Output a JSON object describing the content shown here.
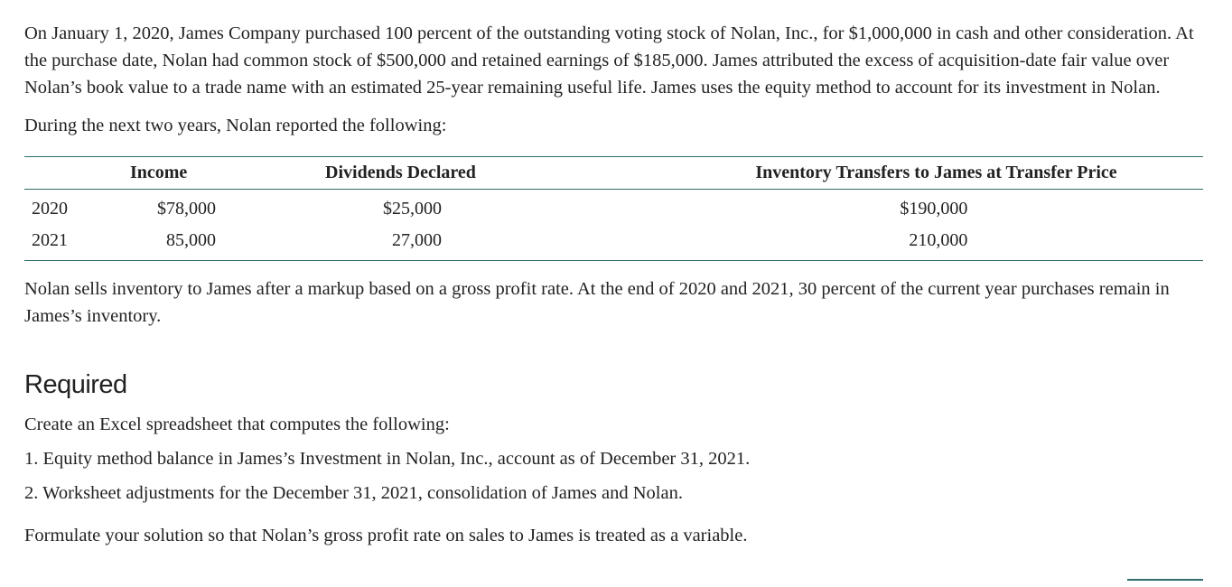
{
  "intro": "On January 1, 2020, James Company purchased 100 percent of the outstanding voting stock of Nolan, Inc., for $1,000,000 in cash and other consideration. At the purchase date, Nolan had common stock of $500,000 and retained earnings of $185,000. James attributed the excess of acquisition-date fair value over Nolan’s book value to a trade name with an estimated 25-year remaining useful life. James uses the equity method to account for its investment in Nolan.",
  "lead": "During the next two years, Nolan reported the following:",
  "table": {
    "headers": {
      "year": "",
      "income": "Income",
      "dividends": "Dividends Declared",
      "inventory": "Inventory Transfers to James at Transfer Price"
    },
    "rows": [
      {
        "year": "2020",
        "income": "$78,000",
        "dividends": "$25,000",
        "inventory": "$190,000"
      },
      {
        "year": "2021",
        "income": "85,000",
        "dividends": "27,000",
        "inventory": "210,000"
      }
    ]
  },
  "after_table": "Nolan sells inventory to James after a markup based on a gross profit rate. At the end of 2020 and 2021, 30 percent of the current year purchases remain in James’s inventory.",
  "required": {
    "heading": "Required",
    "intro": "Create an Excel spreadsheet that computes the following:",
    "items": [
      "1. Equity method balance in James’s Investment in Nolan, Inc., account as of December 31, 2021.",
      "2. Worksheet adjustments for the December 31, 2021, consolidation of James and Nolan."
    ],
    "formula_note": "Formulate your solution so that Nolan’s gross profit rate on sales to James is treated as a variable."
  },
  "colors": {
    "text": "#222222",
    "rule": "#2e6d68"
  }
}
